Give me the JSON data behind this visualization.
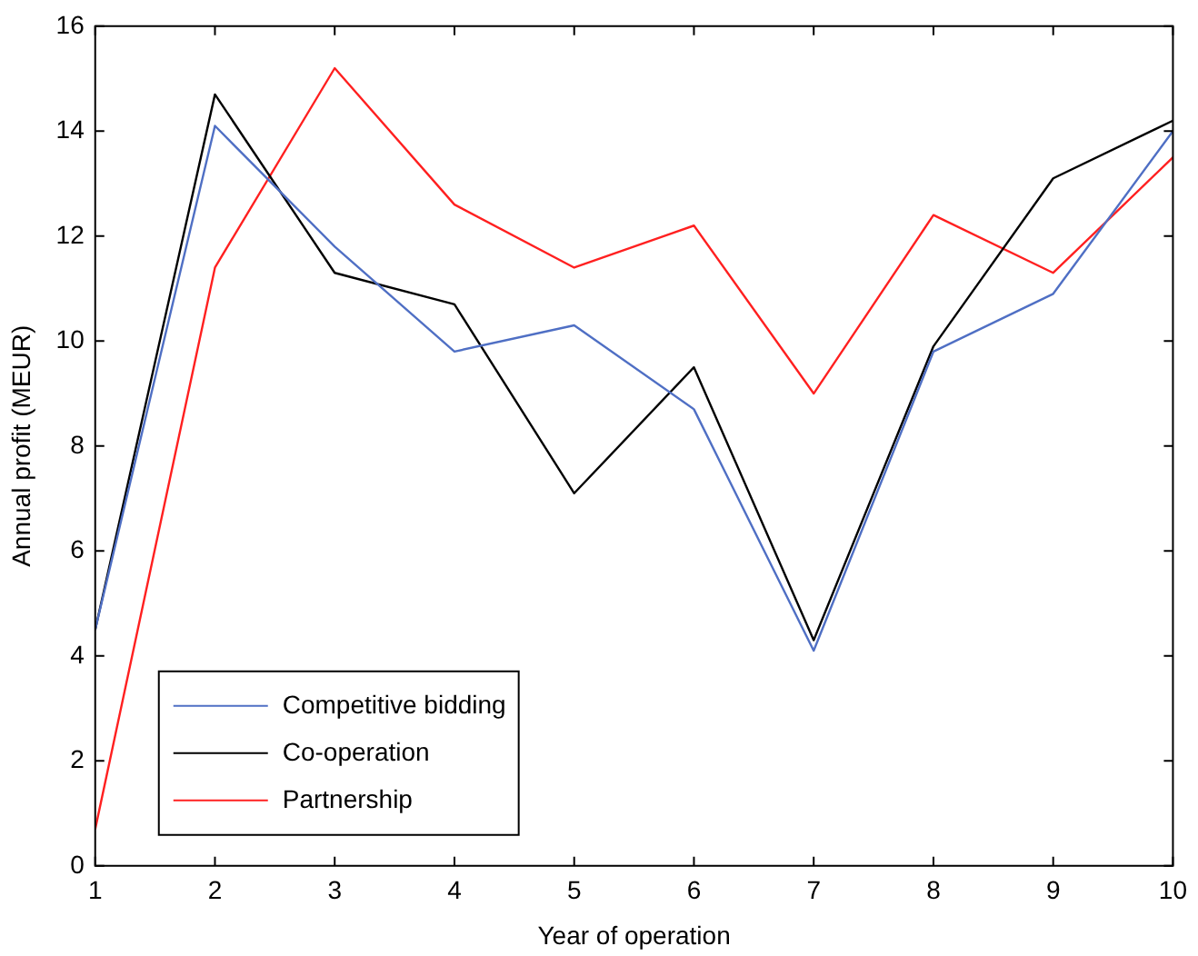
{
  "chart_data": {
    "type": "line",
    "xlabel": "Year of operation",
    "ylabel": "Annual profit (MEUR)",
    "x": [
      1,
      2,
      3,
      4,
      5,
      6,
      7,
      8,
      9,
      10
    ],
    "series": [
      {
        "name": "Competitive bidding",
        "color": "#4f6fc4",
        "values": [
          4.5,
          14.1,
          11.8,
          9.8,
          10.3,
          8.7,
          4.1,
          9.8,
          10.9,
          14.0
        ]
      },
      {
        "name": "Co-operation",
        "color": "#000000",
        "values": [
          4.5,
          14.7,
          11.3,
          10.7,
          7.1,
          9.5,
          4.3,
          9.9,
          13.1,
          14.2
        ]
      },
      {
        "name": "Partnership",
        "color": "#ff2020",
        "values": [
          0.7,
          11.4,
          15.2,
          12.6,
          11.4,
          12.2,
          9.0,
          12.4,
          11.3,
          13.5
        ]
      }
    ],
    "xlim": [
      1,
      10
    ],
    "xticks": [
      1,
      2,
      3,
      4,
      5,
      6,
      7,
      8,
      9,
      10
    ],
    "ylim": [
      0,
      16
    ],
    "yticks": [
      0,
      2,
      4,
      6,
      8,
      10,
      12,
      14,
      16
    ],
    "grid": false,
    "legend": "bottom left",
    "marker": "none",
    "line_style": "solid"
  }
}
